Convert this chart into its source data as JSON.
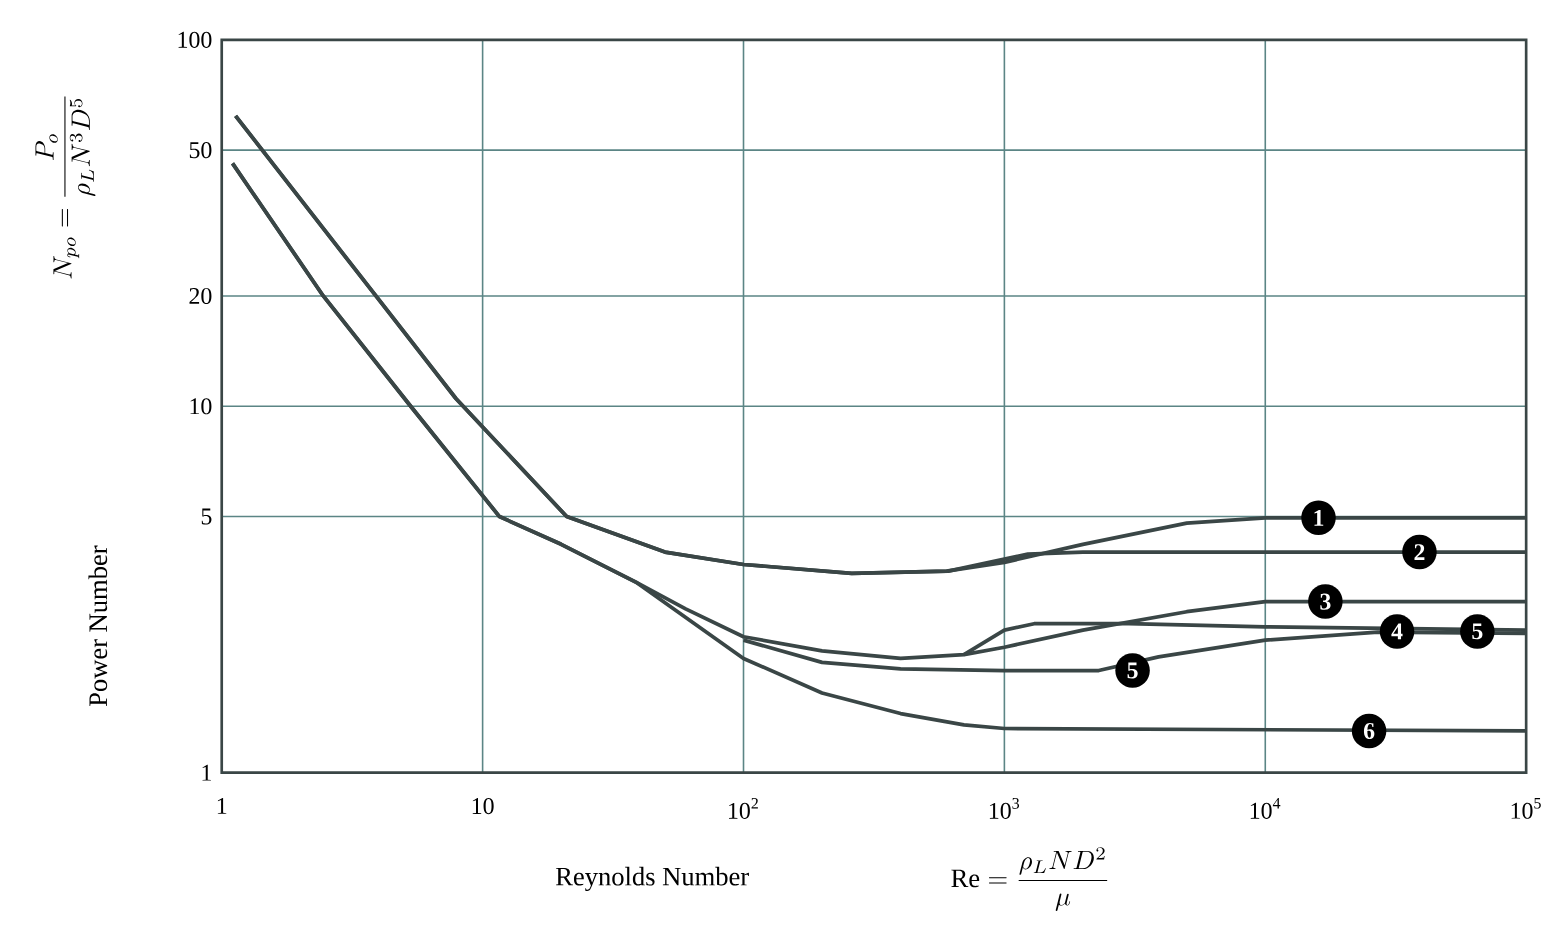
{
  "chart_data": {
    "type": "line",
    "xlabel": "Reynolds Number",
    "ylabel": "Power Number",
    "log": "xy",
    "grid": true,
    "xlim": [
      1,
      100000
    ],
    "ylim": [
      1,
      100
    ],
    "xticks": [
      1,
      10,
      {
        "value": 100,
        "label": "10$^{2}$"
      },
      {
        "value": 1000,
        "label": "10$^{3}$"
      },
      {
        "value": 10000,
        "label": "10$^{4}$"
      },
      {
        "value": 100000,
        "label": "10$^{5}$"
      }
    ],
    "yticks": [
      1,
      5,
      10,
      20,
      50,
      100
    ],
    "series": [
      {
        "color": "#3a4646",
        "x": [
          1.13,
          3.9,
          7.9,
          21,
          50,
          100,
          260,
          600,
          1000,
          2000,
          5000,
          10000,
          100000
        ],
        "values": [
          62,
          20,
          10.5,
          5,
          4.0,
          3.7,
          3.5,
          3.55,
          3.75,
          4.2,
          4.8,
          4.96,
          4.96
        ]
      },
      {
        "color": "#3a4646",
        "x": [
          1.13,
          3.9,
          7.9,
          21,
          50,
          100,
          260,
          610,
          1230,
          2000,
          100000
        ],
        "values": [
          62,
          20,
          10.5,
          5,
          4.0,
          3.7,
          3.5,
          3.55,
          3.95,
          4.0,
          4.0
        ]
      },
      {
        "color": "#3a4646",
        "x": [
          1.1,
          2.45,
          5.3,
          11.6,
          20,
          39,
          60,
          100,
          200,
          400,
          700,
          1000,
          2000,
          5000,
          10000,
          100000
        ],
        "values": [
          46,
          20,
          10,
          5,
          4.2,
          3.3,
          2.8,
          2.35,
          2.15,
          2.05,
          2.1,
          2.2,
          2.45,
          2.75,
          2.93,
          2.93
        ]
      },
      {
        "color": "#3a4646",
        "x": [
          700,
          1000,
          1300,
          3000,
          10000,
          100000
        ],
        "values": [
          2.1,
          2.45,
          2.55,
          2.55,
          2.5,
          2.45
        ]
      },
      {
        "color": "#3a4646",
        "x": [
          100,
          200,
          400,
          1000,
          2300,
          3900,
          10000,
          27000,
          100000
        ],
        "values": [
          2.3,
          2.0,
          1.92,
          1.9,
          1.9,
          2.07,
          2.3,
          2.42,
          2.4
        ]
      },
      {
        "color": "#3a4646",
        "x": [
          1.1,
          2.45,
          5.3,
          11.6,
          20,
          39,
          100,
          200,
          400,
          700,
          1000,
          100000
        ],
        "values": [
          46,
          20,
          10,
          5,
          4.2,
          3.3,
          2.05,
          1.65,
          1.45,
          1.35,
          1.32,
          1.3
        ]
      }
    ],
    "annotations": [
      "N_{po} = \\frac{P_o}{\\rho_L N^3 D^5}",
      "\\mathrm{Re} = \\frac{\\rho_L N D^2}{\\mu}",
      {
        "text": "1",
        "x": 16000,
        "y": 4.96
      },
      {
        "text": "2",
        "x": 39000,
        "y": 4.0
      },
      {
        "text": "3",
        "x": 17000,
        "y": 2.93
      },
      {
        "text": "4",
        "x": 32000,
        "y": 2.43
      },
      {
        "text": "5",
        "x": 65000,
        "y": 2.43
      },
      {
        "text": "5",
        "x": 3100,
        "y": 1.9
      },
      {
        "text": "6",
        "x": 25000,
        "y": 1.3
      }
    ]
  }
}
